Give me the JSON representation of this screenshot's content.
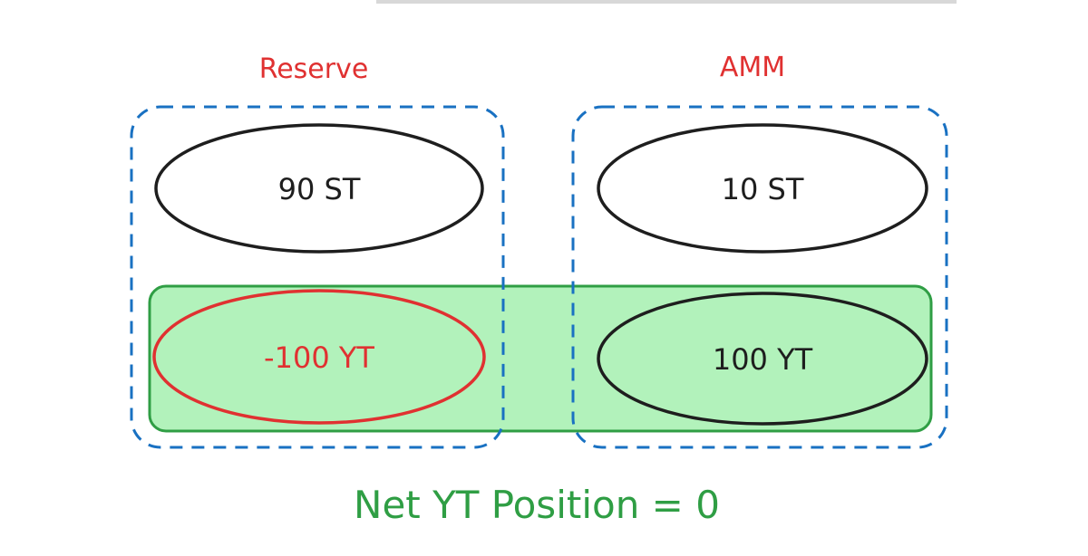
{
  "diagram": {
    "groups": [
      {
        "label": "Reserve",
        "label_color": "#e03131",
        "border_color": "#1971c2"
      },
      {
        "label": "AMM",
        "label_color": "#e03131",
        "border_color": "#1971c2"
      }
    ],
    "nodes": {
      "reserve_st": "90 ST",
      "reserve_yt": "-100 YT",
      "amm_st": "10 ST",
      "amm_yt": "100 YT"
    },
    "highlight": {
      "fill": "#b2f2bb",
      "stroke": "#2f9e44"
    },
    "caption": "Net YT Position = 0",
    "caption_color": "#2f9e44",
    "negative_color": "#e03131"
  }
}
